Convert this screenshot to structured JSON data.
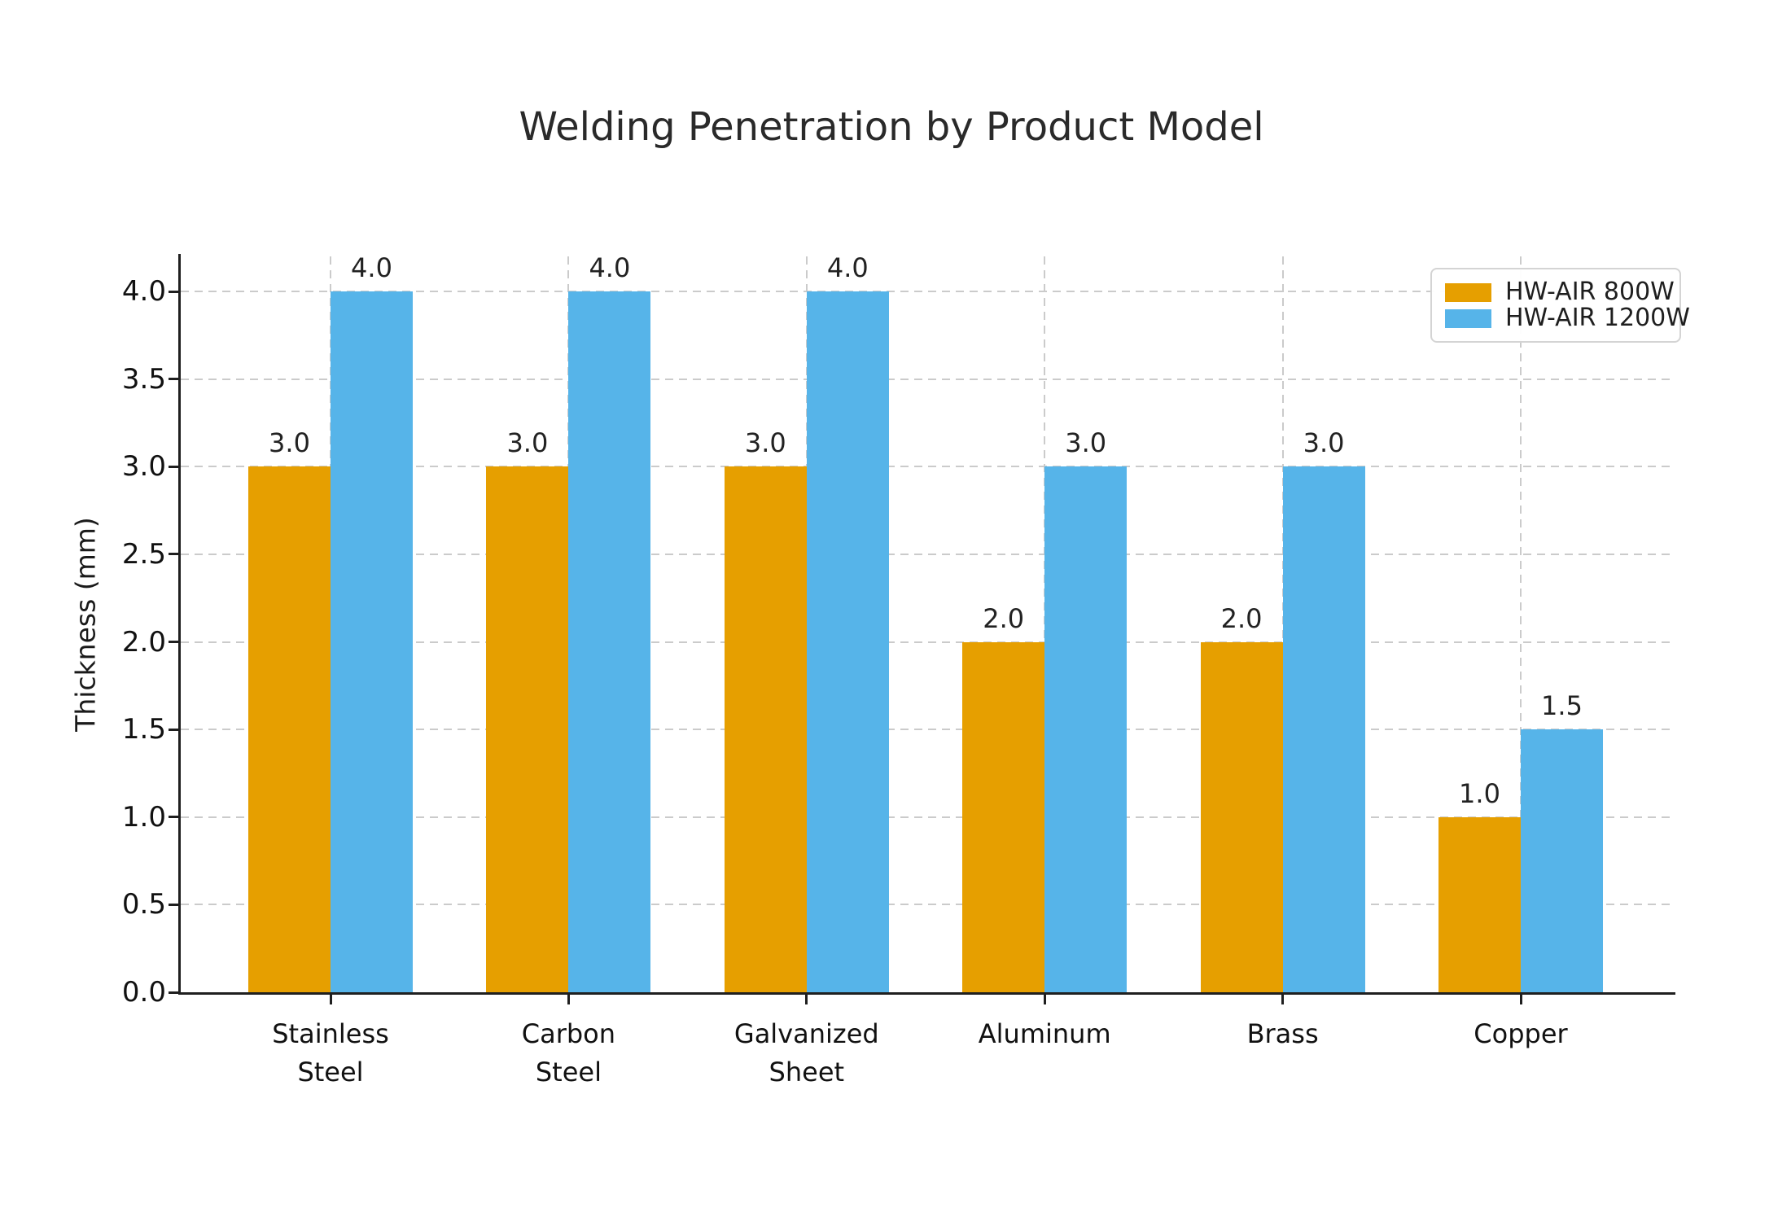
{
  "chart_data": {
    "type": "bar",
    "title": "Welding Penetration by Product Model",
    "ylabel": "Thickness (mm)",
    "categories": [
      "Stainless\nSteel",
      "Carbon\nSteel",
      "Galvanized\nSheet",
      "Aluminum",
      "Brass",
      "Copper"
    ],
    "series": [
      {
        "name": "HW-AIR 800W",
        "color": "#E69F00",
        "values": [
          3.0,
          3.0,
          3.0,
          2.0,
          2.0,
          1.0
        ]
      },
      {
        "name": "HW-AIR 1200W",
        "color": "#56B4E9",
        "values": [
          4.0,
          4.0,
          4.0,
          3.0,
          3.0,
          1.5
        ]
      }
    ],
    "ylim": [
      0,
      4.2
    ],
    "yticks": [
      0.0,
      0.5,
      1.0,
      1.5,
      2.0,
      2.5,
      3.0,
      3.5,
      4.0
    ],
    "grid": "dashed, horizontal at yticks and vertical at category centers",
    "legend_position": "upper right",
    "value_labels_shown": true,
    "background_color": "#ffffff"
  }
}
